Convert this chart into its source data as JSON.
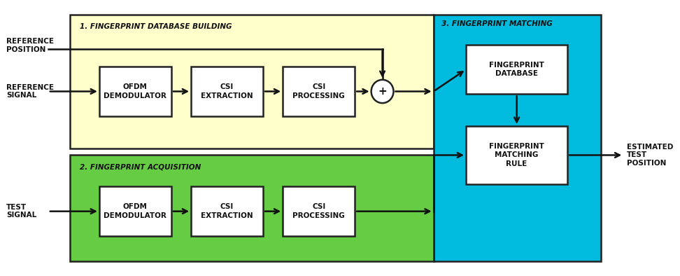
{
  "bg_color": "#ffffff",
  "fig_width": 9.72,
  "fig_height": 3.94,
  "dpi": 100,
  "section1_bg": "#ffffcc",
  "section2_bg": "#66cc44",
  "section3_bg": "#00bbdd",
  "box_bg": "#ffffff",
  "box_edge": "#222222",
  "section_edge": "#222222",
  "text_color": "#111111",
  "arrow_color": "#111111",
  "section1_label": "1. FINGERPRINT DATABASE BUILDING",
  "section2_label": "2. FINGERPRINT ACQUISITION",
  "section3_label": "3. FINGERPRINT MATCHING",
  "boxes_top_row": [
    "OFDM\nDEMODULATOR",
    "CSI\nEXTRACTION",
    "CSI\nPROCESSING"
  ],
  "boxes_bottom_row": [
    "OFDM\nDEMODULATOR",
    "CSI\nEXTRACTION",
    "CSI\nPROCESSING"
  ],
  "box_fp_database": "FINGERPRINT\nDATABASE",
  "box_fp_matching": "FINGERPRINT\nMATCHING\nRULE",
  "label_ref_position": "REFERENCE\nPOSITION",
  "label_ref_signal": "REFERENCE\nSIGNAL",
  "label_test_signal": "TEST\nSIGNAL",
  "label_estimated": "ESTIMATED\nTEST\nPOSITION"
}
